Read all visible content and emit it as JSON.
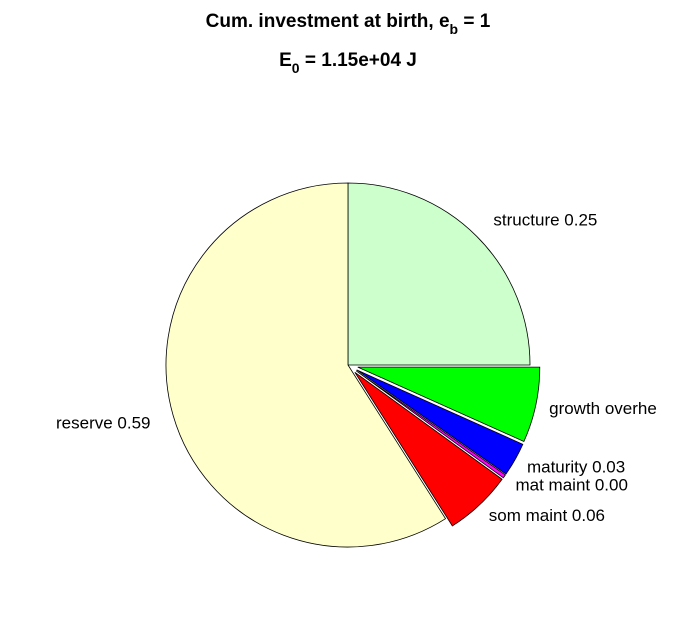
{
  "chart_data": {
    "type": "pie",
    "title": [
      [
        "Cum. investment at birth, e",
        "b",
        " = 1"
      ],
      [
        "E",
        "0",
        " = 1.15e+04 J"
      ]
    ],
    "labels": [
      "structure 0.25",
      "growth overhe",
      "maturity 0.03",
      "mat maint 0.00",
      "som maint 0.06",
      "reserve 0.59"
    ],
    "values": [
      0.25,
      0.067,
      0.03,
      0.003,
      0.06,
      0.59
    ],
    "colors": [
      "#ccffcc",
      "#00ff00",
      "#0000ff",
      "#ff00ff",
      "#ff0000",
      "#ffffcc"
    ],
    "explode": [
      false,
      true,
      true,
      true,
      true,
      false
    ]
  }
}
